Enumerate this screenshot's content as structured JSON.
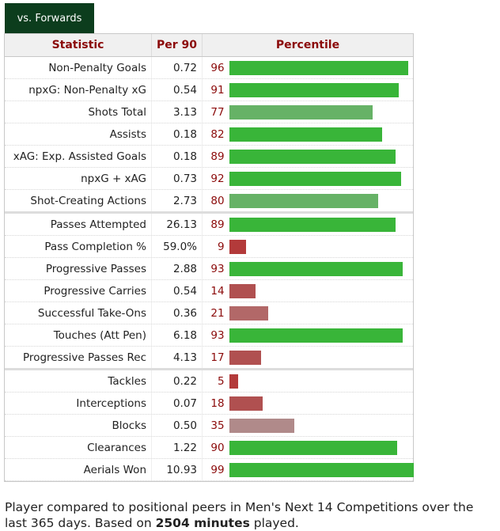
{
  "tab": {
    "label": "vs. Forwards"
  },
  "table": {
    "headers": {
      "statistic": "Statistic",
      "per90": "Per 90",
      "percentile": "Percentile"
    },
    "groups": [
      [
        {
          "stat": "Non-Penalty Goals",
          "per90": "0.72",
          "percentile": 96
        },
        {
          "stat": "npxG: Non-Penalty xG",
          "per90": "0.54",
          "percentile": 91
        },
        {
          "stat": "Shots Total",
          "per90": "3.13",
          "percentile": 77
        },
        {
          "stat": "Assists",
          "per90": "0.18",
          "percentile": 82
        },
        {
          "stat": "xAG: Exp. Assisted Goals",
          "per90": "0.18",
          "percentile": 89
        },
        {
          "stat": "npxG + xAG",
          "per90": "0.73",
          "percentile": 92
        },
        {
          "stat": "Shot-Creating Actions",
          "per90": "2.73",
          "percentile": 80
        }
      ],
      [
        {
          "stat": "Passes Attempted",
          "per90": "26.13",
          "percentile": 89
        },
        {
          "stat": "Pass Completion %",
          "per90": "59.0%",
          "percentile": 9
        },
        {
          "stat": "Progressive Passes",
          "per90": "2.88",
          "percentile": 93
        },
        {
          "stat": "Progressive Carries",
          "per90": "0.54",
          "percentile": 14
        },
        {
          "stat": "Successful Take-Ons",
          "per90": "0.36",
          "percentile": 21
        },
        {
          "stat": "Touches (Att Pen)",
          "per90": "6.18",
          "percentile": 93
        },
        {
          "stat": "Progressive Passes Rec",
          "per90": "4.13",
          "percentile": 17
        }
      ],
      [
        {
          "stat": "Tackles",
          "per90": "0.22",
          "percentile": 5
        },
        {
          "stat": "Interceptions",
          "per90": "0.07",
          "percentile": 18
        },
        {
          "stat": "Blocks",
          "per90": "0.50",
          "percentile": 35
        },
        {
          "stat": "Clearances",
          "per90": "1.22",
          "percentile": 90
        },
        {
          "stat": "Aerials Won",
          "per90": "10.93",
          "percentile": 99
        }
      ]
    ]
  },
  "footer": {
    "text_before": "Player compared to positional peers in Men's Next 14 Competitions over the last 365 days. Based on ",
    "minutes": "2504 minutes",
    "text_after": " played."
  }
}
